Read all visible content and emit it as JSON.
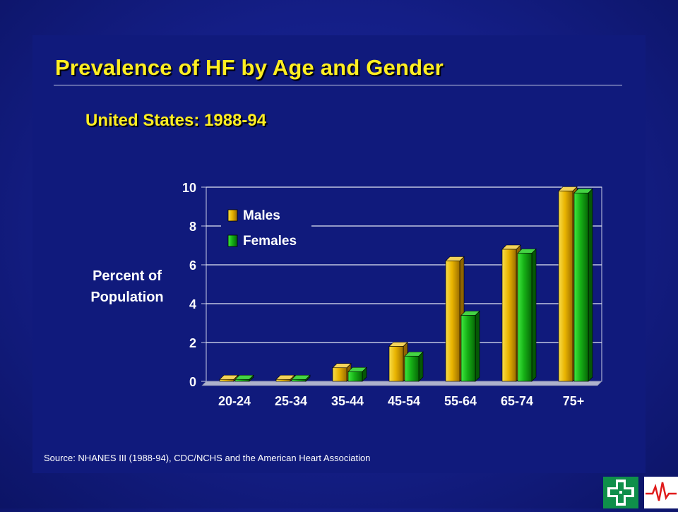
{
  "slide": {
    "title": "Prevalence of HF by Age and Gender",
    "subtitle": "United States:  1988-94",
    "source": "Source:  NHANES III (1988-94), CDC/NCHS and the American Heart Association"
  },
  "chart_data": {
    "type": "bar",
    "categories": [
      "20-24",
      "25-34",
      "35-44",
      "45-54",
      "55-64",
      "65-74",
      "75+"
    ],
    "series": [
      {
        "name": "Males",
        "values": [
          0.1,
          0.1,
          0.7,
          1.8,
          6.2,
          6.8,
          9.8
        ],
        "color": "#e8b400"
      },
      {
        "name": "Females",
        "values": [
          0.1,
          0.1,
          0.5,
          1.3,
          3.4,
          6.6,
          9.7
        ],
        "color": "#1aa81a"
      }
    ],
    "ylabel_lines": [
      "Percent of",
      "Population"
    ],
    "ylim": [
      0,
      10
    ],
    "yticks": [
      0,
      2,
      4,
      6,
      8,
      10
    ],
    "grid": true,
    "legend": "top-left"
  },
  "logos": {
    "left": "green-cross-emblem-icon",
    "right": "heartbeat-line-icon"
  }
}
